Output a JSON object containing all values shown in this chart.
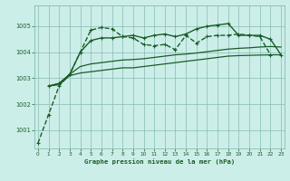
{
  "title": "Graphe pression niveau de la mer (hPa)",
  "bg_color": "#cceee8",
  "grid_color": "#88bbb4",
  "line_color": "#1a5c28",
  "xlim": [
    -0.3,
    23.3
  ],
  "ylim": [
    1000.3,
    1005.8
  ],
  "yticks": [
    1001,
    1002,
    1003,
    1004,
    1005
  ],
  "xticks": [
    0,
    1,
    2,
    3,
    4,
    5,
    6,
    7,
    8,
    9,
    10,
    11,
    12,
    13,
    14,
    15,
    16,
    17,
    18,
    19,
    20,
    21,
    22,
    23
  ],
  "series": [
    {
      "x": [
        0,
        1,
        2,
        3,
        4,
        5,
        6,
        7,
        8,
        9,
        10,
        11,
        12,
        13,
        14,
        15,
        16,
        17,
        18,
        19,
        20,
        21,
        22
      ],
      "y": [
        1000.5,
        1001.6,
        1002.7,
        1003.15,
        1004.0,
        1004.85,
        1004.95,
        1004.9,
        1004.6,
        1004.55,
        1004.3,
        1004.25,
        1004.3,
        1004.1,
        1004.65,
        1004.35,
        1004.6,
        1004.65,
        1004.65,
        1004.7,
        1004.65,
        1004.6,
        1003.9
      ],
      "marker": "+",
      "linestyle": "--",
      "linewidth": 1.0,
      "markersize": 3.5
    },
    {
      "x": [
        1,
        2,
        3,
        4,
        5,
        6,
        7,
        8,
        9,
        10,
        11,
        12,
        13,
        14,
        15,
        16,
        17,
        18,
        19,
        20,
        21,
        22,
        23
      ],
      "y": [
        1002.7,
        1002.75,
        1003.1,
        1003.2,
        1003.25,
        1003.3,
        1003.35,
        1003.4,
        1003.4,
        1003.45,
        1003.5,
        1003.55,
        1003.6,
        1003.65,
        1003.7,
        1003.75,
        1003.8,
        1003.85,
        1003.87,
        1003.88,
        1003.89,
        1003.9,
        1003.9
      ],
      "marker": null,
      "linestyle": "-",
      "linewidth": 0.9,
      "markersize": 0
    },
    {
      "x": [
        1,
        2,
        3,
        4,
        5,
        6,
        7,
        8,
        9,
        10,
        11,
        12,
        13,
        14,
        15,
        16,
        17,
        18,
        19,
        20,
        21,
        22,
        23
      ],
      "y": [
        1002.7,
        1002.8,
        1003.15,
        1003.45,
        1003.55,
        1003.6,
        1003.65,
        1003.7,
        1003.72,
        1003.75,
        1003.8,
        1003.85,
        1003.9,
        1003.93,
        1003.97,
        1004.02,
        1004.07,
        1004.12,
        1004.15,
        1004.17,
        1004.2,
        1004.22,
        1004.2
      ],
      "marker": null,
      "linestyle": "-",
      "linewidth": 0.9,
      "markersize": 0
    },
    {
      "x": [
        1,
        2,
        3,
        4,
        5,
        6,
        7,
        8,
        9,
        10,
        11,
        12,
        13,
        14,
        15,
        16,
        17,
        18,
        19,
        20,
        21,
        22,
        23
      ],
      "y": [
        1002.7,
        1002.8,
        1003.15,
        1004.0,
        1004.45,
        1004.55,
        1004.55,
        1004.6,
        1004.65,
        1004.55,
        1004.65,
        1004.7,
        1004.6,
        1004.7,
        1004.9,
        1005.0,
        1005.05,
        1005.1,
        1004.65,
        1004.65,
        1004.65,
        1004.5,
        1003.9
      ],
      "marker": "+",
      "linestyle": "-",
      "linewidth": 1.0,
      "markersize": 3.5
    }
  ]
}
